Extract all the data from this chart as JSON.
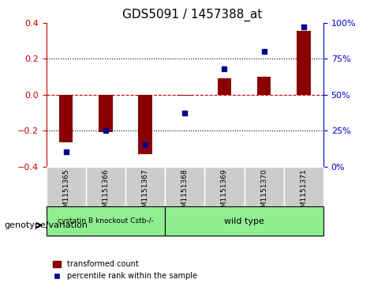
{
  "title": "GDS5091 / 1457388_at",
  "samples": [
    "GSM1151365",
    "GSM1151366",
    "GSM1151367",
    "GSM1151368",
    "GSM1151369",
    "GSM1151370",
    "GSM1151371"
  ],
  "bar_values": [
    -0.265,
    -0.21,
    -0.33,
    -0.005,
    0.09,
    0.1,
    0.355
  ],
  "dot_values": [
    10,
    25,
    15,
    37,
    68,
    80,
    97
  ],
  "ylim_left": [
    -0.4,
    0.4
  ],
  "ylim_right": [
    0,
    100
  ],
  "groups": [
    {
      "label": "cystatin B knockout Cstb-/-",
      "start": 0,
      "end": 3,
      "color": "#90EE90"
    },
    {
      "label": "wild type",
      "start": 3,
      "end": 7,
      "color": "#90EE90"
    }
  ],
  "group_colors": [
    "#90EE90",
    "#90EE90"
  ],
  "bar_color": "#8B0000",
  "dot_color": "#00008B",
  "left_axis_color": "#cc0000",
  "right_axis_color": "#0000cc",
  "dotted_line_color": "#000000",
  "zero_line_color": "#cc0000",
  "background_plot": "#ffffff",
  "background_sample_area": "#cccccc",
  "legend_bar_label": "transformed count",
  "legend_dot_label": "percentile rank within the sample",
  "genotype_label": "genotype/variation",
  "left_ticks": [
    -0.4,
    -0.2,
    0.0,
    0.2,
    0.4
  ],
  "right_ticks": [
    0,
    25,
    50,
    75,
    100
  ],
  "right_tick_labels": [
    "0%",
    "25%",
    "50%",
    "75%",
    "100%"
  ]
}
